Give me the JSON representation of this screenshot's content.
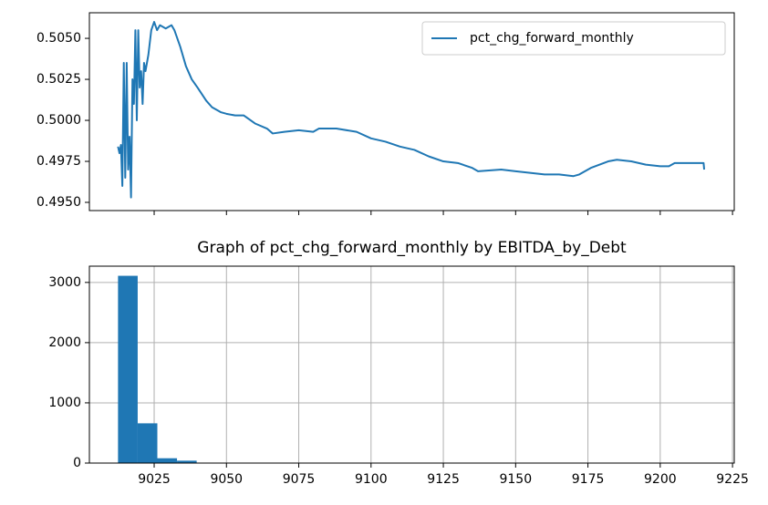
{
  "chart_data": [
    {
      "type": "line",
      "series": [
        {
          "name": "pct_chg_forward_monthly",
          "color": "#1f77b4",
          "x": [
            9012.5,
            9013,
            9013.5,
            9014,
            9014.5,
            9015,
            9015.5,
            9016,
            9016.5,
            9017,
            9017.5,
            9018,
            9018.5,
            9019,
            9019.5,
            9020,
            9020.5,
            9021,
            9021.5,
            9022,
            9023,
            9024,
            9025,
            9026,
            9027,
            9029,
            9031,
            9032,
            9034,
            9036,
            9038,
            9040,
            9043,
            9045,
            9048,
            9050,
            9053,
            9056,
            9060,
            9064,
            9066,
            9070,
            9075,
            9080,
            9082,
            9088,
            9095,
            9100,
            9105,
            9110,
            9115,
            9120,
            9125,
            9130,
            9135,
            9137,
            9145,
            9150,
            9155,
            9160,
            9165,
            9170,
            9172,
            9176,
            9182,
            9185,
            9190,
            9195,
            9200,
            9203,
            9205,
            9210,
            9214,
            9215,
            9215.2
          ],
          "values": [
            0.4984,
            0.498,
            0.4985,
            0.496,
            0.5035,
            0.4965,
            0.5035,
            0.497,
            0.499,
            0.4953,
            0.5025,
            0.501,
            0.5055,
            0.5,
            0.5055,
            0.502,
            0.503,
            0.501,
            0.5035,
            0.503,
            0.504,
            0.5055,
            0.506,
            0.5055,
            0.5058,
            0.5056,
            0.5058,
            0.5055,
            0.5045,
            0.5033,
            0.5025,
            0.502,
            0.5012,
            0.5008,
            0.5005,
            0.5004,
            0.5003,
            0.5003,
            0.4998,
            0.4995,
            0.4992,
            0.4993,
            0.4994,
            0.4993,
            0.4995,
            0.4995,
            0.4993,
            0.4989,
            0.4987,
            0.4984,
            0.4982,
            0.4978,
            0.4975,
            0.4974,
            0.4971,
            0.4969,
            0.497,
            0.4969,
            0.4968,
            0.4967,
            0.4967,
            0.4966,
            0.4967,
            0.4971,
            0.4975,
            0.4976,
            0.4975,
            0.4973,
            0.4972,
            0.4972,
            0.4974,
            0.4974,
            0.4974,
            0.4974,
            0.497
          ]
        }
      ],
      "xlim": [
        9002.6,
        9225.6
      ],
      "xticks": [
        9025,
        9050,
        9075,
        9100,
        9125,
        9150,
        9175,
        9200,
        9225
      ],
      "ylim": [
        0.4945,
        0.50656
      ],
      "yticks": [
        {
          "value": 0.495,
          "label": "0.4950"
        },
        {
          "value": 0.4975,
          "label": "0.4975"
        },
        {
          "value": 0.5,
          "label": "0.5000"
        },
        {
          "value": 0.5025,
          "label": "0.5025"
        },
        {
          "value": 0.505,
          "label": "0.5050"
        }
      ],
      "legend": "upper right",
      "grid": false
    },
    {
      "type": "histogram",
      "title": "Graph of pct_chg_forward_monthly by EBITDA_by_Debt",
      "color": "#1f77b4",
      "bins": [
        9012.5,
        9019.3,
        9026.1,
        9032.9,
        9039.7,
        9046.5,
        9053.3,
        9060.1,
        9066.9,
        9073.7,
        9080.5,
        9087.3,
        9094.1,
        9100.9,
        9107.7,
        9114.5,
        9121.3,
        9128.1,
        9134.9,
        9141.7,
        9148.5,
        9155.3,
        9162.1,
        9168.9,
        9175.7,
        9182.5,
        9189.3,
        9196.1,
        9202.9,
        9209.7,
        9216.5
      ],
      "values": [
        3110,
        660,
        80,
        40,
        6,
        4,
        3,
        2,
        2,
        1,
        1,
        1,
        1,
        1,
        1,
        1,
        1,
        1,
        1,
        1,
        1,
        1,
        1,
        1,
        1,
        1,
        1,
        1,
        1,
        1
      ],
      "xlim": [
        9002.6,
        9225.6
      ],
      "xticks": [
        9025,
        9050,
        9075,
        9100,
        9125,
        9150,
        9175,
        9200,
        9225
      ],
      "ylim": [
        0,
        3270
      ],
      "yticks": [
        0,
        1000,
        2000,
        3000
      ],
      "grid": true
    }
  ]
}
